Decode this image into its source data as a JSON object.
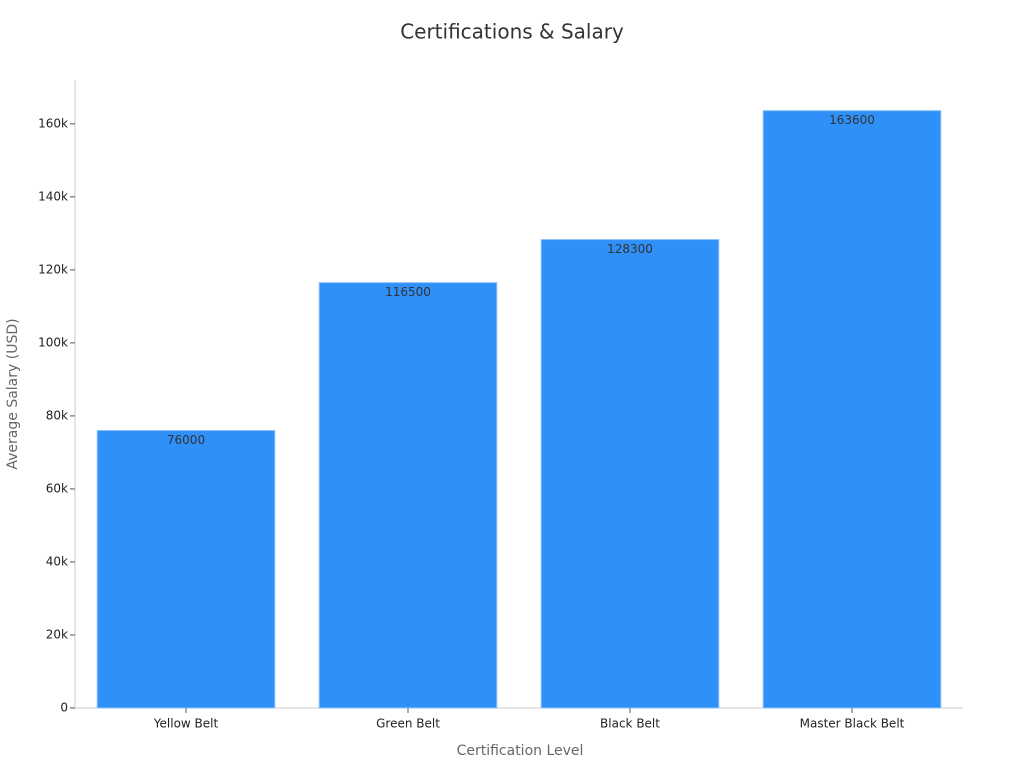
{
  "chart_data": {
    "type": "bar",
    "title": "Certifications & Salary",
    "x_label": "Certification Level",
    "y_label": "Average Salary (USD)",
    "categories": [
      "Yellow Belt",
      "Green Belt",
      "Black Belt",
      "Master Black Belt"
    ],
    "values": [
      76000,
      116500,
      128300,
      163600
    ],
    "color": "#2f91f8",
    "ylim": [
      0,
      172000
    ],
    "yticks": [
      0,
      {
        "value": 20000,
        "label": "20k"
      },
      {
        "value": 40000,
        "label": "40k"
      },
      {
        "value": 60000,
        "label": "60k"
      },
      {
        "value": 80000,
        "label": "80k"
      },
      {
        "value": 100000,
        "label": "100k"
      },
      {
        "value": 120000,
        "label": "120k"
      },
      {
        "value": 140000,
        "label": "140k"
      },
      {
        "value": 160000,
        "label": "160k"
      }
    ],
    "grid": false
  }
}
